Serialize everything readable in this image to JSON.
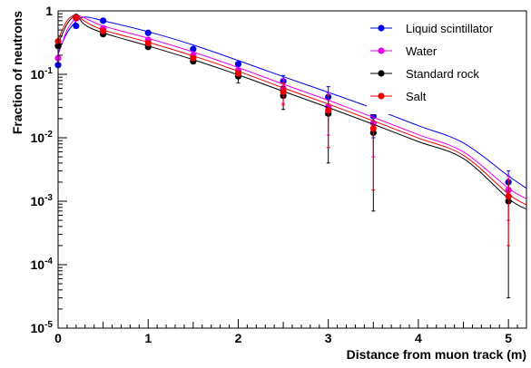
{
  "chart_data": {
    "type": "scatter",
    "xlabel": "Distance from muon track (m)",
    "ylabel": "Fraction of  neutrons",
    "xlim": [
      0,
      5.2
    ],
    "ylim": [
      1e-05,
      1
    ],
    "y_scale": "log",
    "x_ticks": [
      {
        "value": 0,
        "label": "0"
      },
      {
        "value": 1,
        "label": "1"
      },
      {
        "value": 2,
        "label": "2"
      },
      {
        "value": 3,
        "label": "3"
      },
      {
        "value": 4,
        "label": "4"
      },
      {
        "value": 5,
        "label": "5"
      }
    ],
    "y_ticks": [
      {
        "value": 1,
        "base": "1",
        "exp": ""
      },
      {
        "value": 0.1,
        "base": "10",
        "exp": "-1"
      },
      {
        "value": 0.01,
        "base": "10",
        "exp": "-2"
      },
      {
        "value": 0.001,
        "base": "10",
        "exp": "-3"
      },
      {
        "value": 0.0001,
        "base": "10",
        "exp": "-4"
      },
      {
        "value": 1e-05,
        "base": "10",
        "exp": "-5"
      }
    ],
    "legend_position": "top-right",
    "grid": false,
    "series": [
      {
        "name": "Liquid scintillator",
        "color": "#0000ee",
        "points": [
          {
            "x": 0.0,
            "y": 0.14,
            "err": 0.0
          },
          {
            "x": 0.2,
            "y": 0.58,
            "err": 0.0
          },
          {
            "x": 0.5,
            "y": 0.7,
            "err": 0.0
          },
          {
            "x": 1.0,
            "y": 0.45,
            "err": 0.0
          },
          {
            "x": 1.5,
            "y": 0.25,
            "err": 0.0
          },
          {
            "x": 2.0,
            "y": 0.145,
            "err": 0.0
          },
          {
            "x": 2.5,
            "y": 0.078,
            "err": 0.018
          },
          {
            "x": 3.0,
            "y": 0.044,
            "err": 0.02
          },
          {
            "x": 3.5,
            "y": 0.022,
            "err": 0.012
          },
          {
            "x": 5.0,
            "y": 0.002,
            "err": 0.001
          }
        ],
        "curve": [
          [
            0.0,
            0.22
          ],
          [
            0.1,
            0.45
          ],
          [
            0.2,
            0.68
          ],
          [
            0.3,
            0.8
          ],
          [
            0.5,
            0.7
          ],
          [
            1.0,
            0.47
          ],
          [
            1.5,
            0.29
          ],
          [
            2.0,
            0.165
          ],
          [
            2.5,
            0.092
          ],
          [
            3.0,
            0.052
          ],
          [
            3.5,
            0.029
          ],
          [
            4.0,
            0.0155
          ],
          [
            4.5,
            0.0083
          ],
          [
            5.0,
            0.0025
          ],
          [
            5.2,
            0.0016
          ]
        ]
      },
      {
        "name": "Water",
        "color": "#ee00ee",
        "points": [
          {
            "x": 0.0,
            "y": 0.18,
            "err": 0.0
          },
          {
            "x": 0.2,
            "y": 0.76,
            "err": 0.0
          },
          {
            "x": 0.5,
            "y": 0.53,
            "err": 0.0
          },
          {
            "x": 1.0,
            "y": 0.35,
            "err": 0.0
          },
          {
            "x": 1.5,
            "y": 0.2,
            "err": 0.0
          },
          {
            "x": 2.0,
            "y": 0.115,
            "err": 0.0
          },
          {
            "x": 2.5,
            "y": 0.06,
            "err": 0.025
          },
          {
            "x": 3.0,
            "y": 0.031,
            "err": 0.02
          },
          {
            "x": 3.5,
            "y": 0.017,
            "err": 0.012
          },
          {
            "x": 5.0,
            "y": 0.0015,
            "err": 0.001
          }
        ],
        "curve": [
          [
            0.0,
            0.2
          ],
          [
            0.1,
            0.5
          ],
          [
            0.2,
            0.78
          ],
          [
            0.25,
            0.82
          ],
          [
            0.5,
            0.58
          ],
          [
            1.0,
            0.37
          ],
          [
            1.5,
            0.225
          ],
          [
            2.0,
            0.128
          ],
          [
            2.5,
            0.07
          ],
          [
            3.0,
            0.039
          ],
          [
            3.5,
            0.021
          ],
          [
            4.0,
            0.0112
          ],
          [
            4.5,
            0.006
          ],
          [
            5.0,
            0.0016
          ],
          [
            5.2,
            0.0011
          ]
        ]
      },
      {
        "name": "Standard rock",
        "color": "#000000",
        "points": [
          {
            "x": 0.0,
            "y": 0.28,
            "err": 0.0
          },
          {
            "x": 0.2,
            "y": 0.8,
            "err": 0.0
          },
          {
            "x": 0.5,
            "y": 0.43,
            "err": 0.0
          },
          {
            "x": 1.0,
            "y": 0.27,
            "err": 0.0
          },
          {
            "x": 1.5,
            "y": 0.16,
            "err": 0.0
          },
          {
            "x": 2.0,
            "y": 0.093,
            "err": 0.02
          },
          {
            "x": 2.5,
            "y": 0.046,
            "err": 0.018
          },
          {
            "x": 3.0,
            "y": 0.024,
            "err": 0.02
          },
          {
            "x": 3.5,
            "y": 0.012,
            "err": 0.0113
          },
          {
            "x": 5.0,
            "y": 0.001,
            "err": 0.00097
          }
        ],
        "curve": [
          [
            0.0,
            0.3
          ],
          [
            0.1,
            0.62
          ],
          [
            0.2,
            0.83
          ],
          [
            0.3,
            0.6
          ],
          [
            0.5,
            0.45
          ],
          [
            1.0,
            0.28
          ],
          [
            1.5,
            0.17
          ],
          [
            2.0,
            0.098
          ],
          [
            2.5,
            0.054
          ],
          [
            3.0,
            0.03
          ],
          [
            3.5,
            0.0163
          ],
          [
            4.0,
            0.0087
          ],
          [
            4.5,
            0.0047
          ],
          [
            5.0,
            0.0011
          ],
          [
            5.2,
            0.00075
          ]
        ]
      },
      {
        "name": "Salt",
        "color": "#ee0000",
        "points": [
          {
            "x": 0.0,
            "y": 0.33,
            "err": 0.0
          },
          {
            "x": 0.2,
            "y": 0.78,
            "err": 0.0
          },
          {
            "x": 0.5,
            "y": 0.48,
            "err": 0.0
          },
          {
            "x": 1.0,
            "y": 0.31,
            "err": 0.0
          },
          {
            "x": 1.5,
            "y": 0.18,
            "err": 0.0
          },
          {
            "x": 2.0,
            "y": 0.103,
            "err": 0.0
          },
          {
            "x": 2.5,
            "y": 0.053,
            "err": 0.02
          },
          {
            "x": 3.0,
            "y": 0.027,
            "err": 0.02
          },
          {
            "x": 3.5,
            "y": 0.014,
            "err": 0.0125
          },
          {
            "x": 5.0,
            "y": 0.0012,
            "err": 0.001
          }
        ],
        "curve": [
          [
            0.0,
            0.35
          ],
          [
            0.1,
            0.7
          ],
          [
            0.2,
            0.86
          ],
          [
            0.3,
            0.68
          ],
          [
            0.5,
            0.5
          ],
          [
            1.0,
            0.32
          ],
          [
            1.5,
            0.195
          ],
          [
            2.0,
            0.112
          ],
          [
            2.5,
            0.061
          ],
          [
            3.0,
            0.034
          ],
          [
            3.5,
            0.0185
          ],
          [
            4.0,
            0.0099
          ],
          [
            4.5,
            0.0053
          ],
          [
            5.0,
            0.0013
          ],
          [
            5.2,
            0.00088
          ]
        ]
      }
    ]
  }
}
